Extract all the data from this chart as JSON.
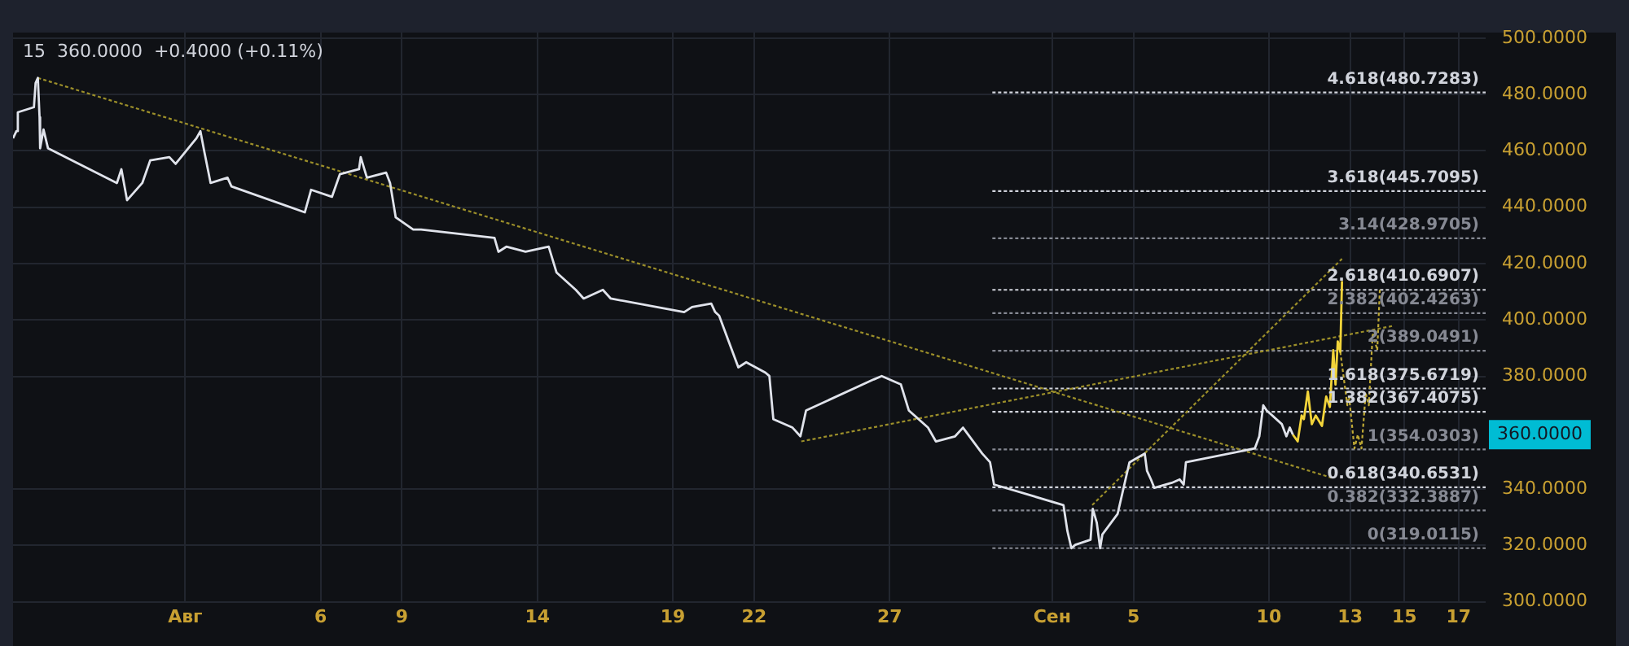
{
  "chart_data": {
    "type": "line",
    "title": "15  360.0000  +0.4000 (+0.11%)",
    "xlim": [
      "--07-25T15:30",
      "--09-18T00:00"
    ],
    "ylim": [
      300,
      502
    ],
    "xticks": [
      {
        "value": "--08-01",
        "label": "Авг"
      },
      {
        "value": "--08-06",
        "label": "6"
      },
      {
        "value": "--08-09",
        "label": "9"
      },
      {
        "value": "--08-14",
        "label": "14"
      },
      {
        "value": "--08-19",
        "label": "19"
      },
      {
        "value": "--08-22",
        "label": "22"
      },
      {
        "value": "--08-27",
        "label": "27"
      },
      {
        "value": "--09-02",
        "label": "Сен"
      },
      {
        "value": "--09-05",
        "label": "5"
      },
      {
        "value": "--09-10",
        "label": "10"
      },
      {
        "value": "--09-13",
        "label": "13"
      },
      {
        "value": "--09-15",
        "label": "15"
      },
      {
        "value": "--09-17",
        "label": "17"
      }
    ],
    "yticks": [
      {
        "value": 300,
        "label": "300.0000"
      },
      {
        "value": 320,
        "label": "320.0000"
      },
      {
        "value": 340,
        "label": "340.0000"
      },
      {
        "value": 380,
        "label": "380.0000"
      },
      {
        "value": 400,
        "label": "400.0000"
      },
      {
        "value": 420,
        "label": "420.0000"
      },
      {
        "value": 440,
        "label": "440.0000"
      },
      {
        "value": 460,
        "label": "460.0000"
      },
      {
        "value": 480,
        "label": "480.0000"
      },
      {
        "value": 500,
        "label": "500.0000"
      }
    ],
    "grid": true,
    "legend": false,
    "marker": "none",
    "annotations": [
      "360.0000"
    ],
    "series": [
      {
        "color": "#e0e3eb",
        "line_style": "solid",
        "x": [
          "--07-25T15:30",
          "--07-25T18:30",
          "--07-25T19:45",
          "--07-26T10:00",
          "--07-26T11:30",
          "--07-26T13:30",
          "--07-26T15:00",
          "--07-26T15:30",
          "--07-26T18:30",
          "--07-26T22:30",
          "--07-29T11:30",
          "--07-29T15:30",
          "--07-29T20:30",
          "--07-30T10:00",
          "--07-30T17:00",
          "--07-31T10:00",
          "--07-31T15:30",
          "--08-01T10:00",
          "--08-01T13:30",
          "--08-01T17:00",
          "--08-01T22:30",
          "--08-02T13:30",
          "--08-02T17:00",
          "--08-05T10:00",
          "--08-05T15:30",
          "--08-06T10:00",
          "--08-06T17:00",
          "--08-07T10:00",
          "--08-07T11:30",
          "--08-07T17:00",
          "--08-08T10:00",
          "--08-08T13:30",
          "--08-08T18:30",
          "--08-09T10:00",
          "--08-09T17:00",
          "--08-12T10:00",
          "--08-12T13:30",
          "--08-12T20:30",
          "--08-13T13:30",
          "--08-14T10:00",
          "--08-14T17:00",
          "--08-15T10:00",
          "--08-15T17:00",
          "--08-16T10:00",
          "--08-16T17:00",
          "--08-19T10:00",
          "--08-19T17:00",
          "--08-20T10:00",
          "--08-20T13:30",
          "--08-20T17:00",
          "--08-21T10:00",
          "--08-21T17:00",
          "--08-22T10:00",
          "--08-22T13:30",
          "--08-22T17:00",
          "--08-23T10:00",
          "--08-23T17:00",
          "--08-23T22:00",
          "--08-26T10:00",
          "--08-26T17:00",
          "--08-27T10:00",
          "--08-27T17:00",
          "--08-28T10:00",
          "--08-28T17:00",
          "--08-29T10:00",
          "--08-29T17:00",
          "--08-30T10:00",
          "--08-30T17:00",
          "--08-30T20:30",
          "--09-02T10:00",
          "--09-02T13:30",
          "--09-02T17:00",
          "--09-02T20:30",
          "--09-03T10:00",
          "--09-03T12:00",
          "--09-03T15:30",
          "--09-03T18:30",
          "--09-03T20:30",
          "--09-04T10:00",
          "--09-04T13:30",
          "--09-04T17:00",
          "--09-04T20:30",
          "--09-05T10:00",
          "--09-05T12:00",
          "--09-05T15:30",
          "--09-05T18:30",
          "--09-06T10:00",
          "--09-06T17:00",
          "--09-06T20:30",
          "--09-06T22:30",
          "--09-09T11:30",
          "--09-09T15:30",
          "--09-09T19:00",
          "--09-09T22:00",
          "--09-10T11:30",
          "--09-10T15:30",
          "--09-10T18:30",
          "--09-10T21:15"
        ],
        "values": [
          464.5,
          467.0,
          473.7,
          475.5,
          484.1,
          485.9,
          471.9,
          460.9,
          467.6,
          460.9,
          448.6,
          453.5,
          442.5,
          448.6,
          456.6,
          457.8,
          455.4,
          464.5,
          467.0,
          459.6,
          448.6,
          450.5,
          447.4,
          438.2,
          446.2,
          443.7,
          451.7,
          453.5,
          457.8,
          450.5,
          452.3,
          448.6,
          436.4,
          432.1,
          432.1,
          429.1,
          424.2,
          426.0,
          424.2,
          426.0,
          416.8,
          410.7,
          407.6,
          410.7,
          407.6,
          402.8,
          404.6,
          405.8,
          402.8,
          401.5,
          383.2,
          385.0,
          381.3,
          380.1,
          364.8,
          361.8,
          358.7,
          367.9,
          378.9,
          380.1,
          377.1,
          367.9,
          361.8,
          356.9,
          358.7,
          361.8,
          352.6,
          349.5,
          341.6,
          334.3,
          325.1,
          319.0,
          320.2,
          322.0,
          333.0,
          328.1,
          319.0,
          323.9,
          331.2,
          337.3,
          343.4,
          349.5,
          352.6,
          346.5,
          343.4,
          340.4,
          342.2,
          343.4,
          341.6,
          349.5,
          354.4,
          358.7,
          369.7,
          367.9,
          363.0,
          358.7,
          361.8,
          359.3
        ]
      },
      {
        "color": "#f2d43a",
        "line_style": "solid",
        "x": [
          "--09-10T21:15",
          "--09-11T01:30",
          "--09-11T05:00",
          "--09-11T07:00",
          "--09-11T10:30",
          "--09-11T14:00",
          "--09-11T17:30",
          "--09-11T23:00",
          "--09-12T02:45",
          "--09-12T06:00",
          "--09-12T09:00",
          "--09-12T11:00",
          "--09-12T13:00",
          "--09-12T15:15",
          "--09-12T16:45"
        ],
        "values": [
          359.3,
          356.9,
          366.1,
          364.8,
          374.6,
          363.0,
          366.1,
          362.4,
          372.8,
          369.1,
          389.3,
          377.1,
          392.4,
          388.7,
          413.8
        ]
      },
      {
        "color": "#bfa935",
        "line_style": "dotted",
        "x": [
          "--09-12T15:15",
          "--09-12T21:30",
          "--09-12T23:00",
          "--09-13T03:45",
          "--09-13T06:45",
          "--09-13T10:00",
          "--09-13T13:45",
          "--09-13T16:30",
          "--09-13T20:00",
          "--09-14T00:00",
          "--09-14T02:15"
        ],
        "values": [
          388.7,
          369.7,
          372.8,
          354.4,
          359.3,
          354.4,
          374.0,
          369.7,
          395.4,
          389.3,
          410.7
        ]
      },
      {
        "color": "#9c8f2a",
        "line_style": "dotted",
        "x": [
          "--07-26T13:30",
          "--09-12T07:30"
        ],
        "values": [
          485.9,
          344.0
        ]
      },
      {
        "color": "#9c8f2a",
        "line_style": "dotted",
        "x": [
          "--08-23T17:45",
          "--09-14T14:00"
        ],
        "values": [
          356.9,
          397.9
        ]
      },
      {
        "color": "#9c8f2a",
        "line_style": "dotted",
        "x": [
          "--09-03T11:30",
          "--09-12T16:45"
        ],
        "values": [
          334.3,
          421.7
        ]
      },
      {
        "name": "4.618(480.7283)",
        "color": "#d1d4dc",
        "line_style": "dotted",
        "x": [
          "--08-30T19:00",
          "--09-18T00:00"
        ],
        "values": [
          480.7283,
          480.7283
        ]
      },
      {
        "name": "3.618(445.7095)",
        "color": "#d1d4dc",
        "line_style": "dotted",
        "x": [
          "--08-30T19:00",
          "--09-18T00:00"
        ],
        "values": [
          445.7095,
          445.7095
        ]
      },
      {
        "name": "3.14(428.9705)",
        "color": "#868993",
        "line_style": "dotted",
        "x": [
          "--08-30T19:00",
          "--09-18T00:00"
        ],
        "values": [
          428.9705,
          428.9705
        ]
      },
      {
        "name": "2.618(410.6907)",
        "color": "#d1d4dc",
        "line_style": "dotted",
        "x": [
          "--08-30T19:00",
          "--09-18T00:00"
        ],
        "values": [
          410.6907,
          410.6907
        ]
      },
      {
        "name": "2.382(402.4263)",
        "color": "#868993",
        "line_style": "dotted",
        "x": [
          "--08-30T19:00",
          "--09-18T00:00"
        ],
        "values": [
          402.4263,
          402.4263
        ]
      },
      {
        "name": "2(389.0491)",
        "color": "#868993",
        "line_style": "dotted",
        "x": [
          "--08-30T19:00",
          "--09-18T00:00"
        ],
        "values": [
          389.0491,
          389.0491
        ]
      },
      {
        "name": "1.618(375.6719)",
        "color": "#d1d4dc",
        "line_style": "dotted",
        "x": [
          "--08-30T19:00",
          "--09-18T00:00"
        ],
        "values": [
          375.6719,
          375.6719
        ]
      },
      {
        "name": "1.382(367.4075)",
        "color": "#d1d4dc",
        "line_style": "dotted",
        "x": [
          "--08-30T19:00",
          "--09-18T00:00"
        ],
        "values": [
          367.4075,
          367.4075
        ]
      },
      {
        "name": "1(354.0303)",
        "color": "#868993",
        "line_style": "dotted",
        "x": [
          "--08-30T19:00",
          "--09-18T00:00"
        ],
        "values": [
          354.0303,
          354.0303
        ]
      },
      {
        "name": "0.618(340.6531)",
        "color": "#d1d4dc",
        "line_style": "dotted",
        "x": [
          "--08-30T19:00",
          "--09-18T00:00"
        ],
        "values": [
          340.6531,
          340.6531
        ]
      },
      {
        "name": "0.382(332.3887)",
        "color": "#868993",
        "line_style": "dotted",
        "x": [
          "--08-30T19:00",
          "--09-18T00:00"
        ],
        "values": [
          332.3887,
          332.3887
        ]
      },
      {
        "name": "0(319.0115)",
        "color": "#868993",
        "line_style": "dotted",
        "x": [
          "--08-30T19:00",
          "--09-18T00:00"
        ],
        "values": [
          319.0115,
          319.0115
        ]
      }
    ]
  }
}
